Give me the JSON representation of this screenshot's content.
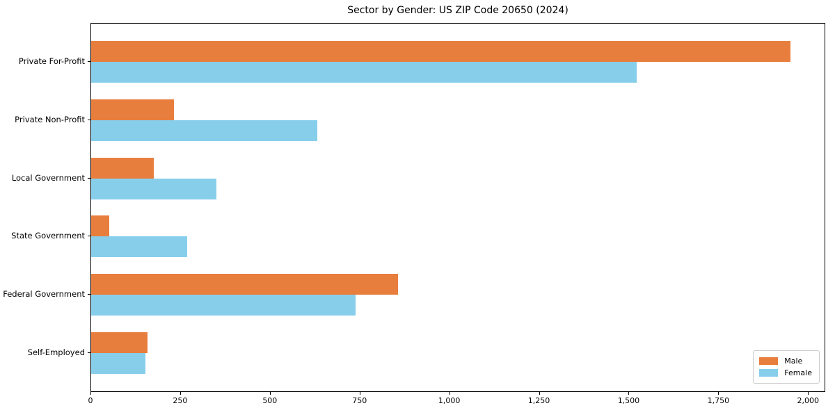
{
  "title": "Sector by Gender: US ZIP Code 20650 (2024)",
  "chart_data": {
    "type": "bar",
    "orientation": "horizontal",
    "title": "Sector by Gender: US ZIP Code 20650 (2024)",
    "categories": [
      "Private For-Profit",
      "Private Non-Profit",
      "Local Government",
      "State Government",
      "Federal Government",
      "Self-Employed"
    ],
    "series": [
      {
        "name": "Male",
        "color": "#e87e3d",
        "values": [
          1950,
          230,
          175,
          50,
          855,
          157
        ]
      },
      {
        "name": "Female",
        "color": "#87ceeb",
        "values": [
          1520,
          630,
          350,
          267,
          736,
          151
        ]
      }
    ],
    "xlabel": "",
    "ylabel": "",
    "xlim": [
      0,
      2048
    ],
    "xticks": [
      0,
      250,
      500,
      750,
      1000,
      1250,
      1500,
      1750,
      2000
    ],
    "xtick_labels": [
      "0",
      "250",
      "500",
      "750",
      "1,000",
      "1,250",
      "1,500",
      "1,750",
      "2,000"
    ],
    "grid": false,
    "legend": {
      "position": "lower right",
      "entries": [
        "Male",
        "Female"
      ]
    }
  }
}
